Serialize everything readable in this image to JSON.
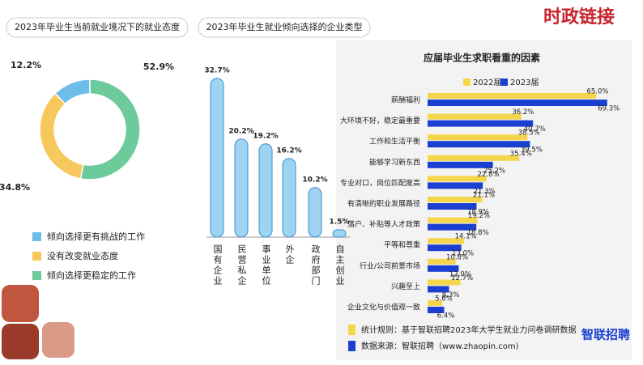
{
  "header": "时政链接",
  "chart_data": [
    {
      "type": "donut",
      "title": "2023年毕业生当前就业境况下的就业态度",
      "categories": [
        "倾向选择更有挑战的工作",
        "没有改变就业态度",
        "倾向选择更稳定的工作"
      ],
      "values": [
        12.2,
        34.8,
        52.9
      ],
      "value_labels": [
        "12.2%",
        "34.8%",
        "52.9%"
      ],
      "colors": [
        "#6cbde9",
        "#f7c95c",
        "#6dcb9b"
      ]
    },
    {
      "type": "bar",
      "title": "2023年毕业生就业倾向选择的企业类型",
      "categories": [
        "国有企业",
        "民营私企",
        "事业单位",
        "外企",
        "政府部门",
        "自主创业"
      ],
      "values": [
        32.7,
        20.2,
        19.2,
        16.2,
        10.2,
        1.5
      ],
      "value_labels": [
        "32.7%",
        "20.2%",
        "19.2%",
        "16.2%",
        "10.2%",
        "1.5%"
      ],
      "color": "#9fd3f2"
    },
    {
      "type": "barh",
      "title": "应届毕业生求职看重的因素",
      "categories": [
        "薪酬福利",
        "大环境不好，稳定最重要",
        "工作和生活平衡",
        "能够学习新东西",
        "专业对口，岗位匹配度高",
        "有清晰的职业发展路径",
        "落户、补贴等人才政策",
        "平等和尊重",
        "行业/公司前景市场",
        "兴趣至上",
        "企业文化与价值观一致"
      ],
      "series": [
        {
          "name": "2022届",
          "color": "#f5d64a",
          "values": [
            65.0,
            36.2,
            38.5,
            35.4,
            22.8,
            21.1,
            19.2,
            14.1,
            10.8,
            12.7,
            5.6
          ],
          "value_labels": [
            "65.0%",
            "36.2%",
            "38.5%",
            "35.4%",
            "22.8%",
            "21.1%",
            "19.2%",
            "14.1%",
            "10.8%",
            "12.7%",
            "5.6%"
          ]
        },
        {
          "name": "2023届",
          "color": "#1a3fd1",
          "values": [
            69.3,
            40.7,
            39.5,
            25.2,
            21.3,
            18.9,
            18.8,
            13.0,
            12.0,
            8.3,
            6.4
          ],
          "value_labels": [
            "69.3%",
            "40.7%",
            "39.5%",
            "25.2%",
            "21.3%",
            "18.9%",
            "18.8%",
            "13.0%",
            "12.0%",
            "8.3%",
            "6.4%"
          ]
        }
      ]
    }
  ],
  "notes": [
    "统计规则：基于智联招聘2023年大学生就业力问卷调研数据",
    "数据来源：智联招聘（www.zhaopin.com)"
  ],
  "logo": "智联招聘"
}
